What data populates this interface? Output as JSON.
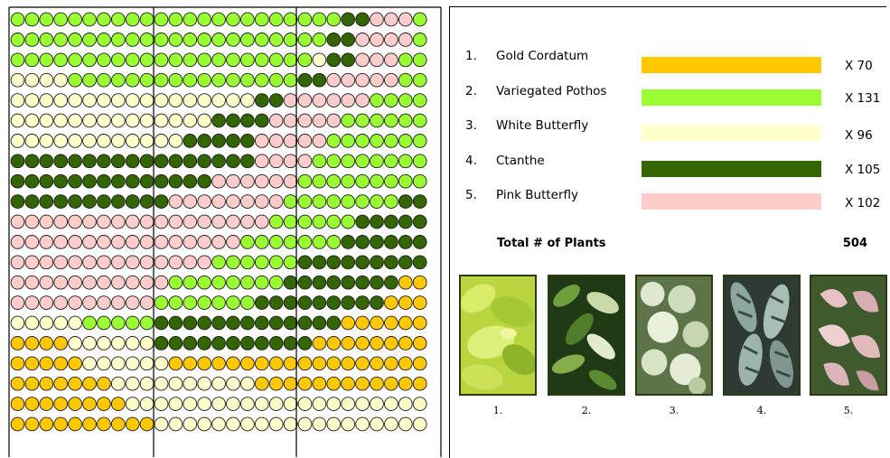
{
  "legend": {
    "items": [
      {
        "number": "1.",
        "name": "Gold Cordatum",
        "count": "X  70",
        "color": "#FFC800"
      },
      {
        "number": "2.",
        "name": "Variegated Pothos",
        "count": "X 131",
        "color": "#99FF33"
      },
      {
        "number": "3.",
        "name": "White Butterfly",
        "count": "X  96",
        "color": "#FFFFCC"
      },
      {
        "number": "4.",
        "name": "Ctanthe",
        "count": "X 105",
        "color": "#336600"
      },
      {
        "number": "5.",
        "name": "Pink Butterfly",
        "count": "X 102",
        "color": "#FFCCCC"
      }
    ],
    "total_label": "Total # of Plants",
    "total_value": "504"
  },
  "photos": [
    {
      "caption": "1.",
      "subject": "gold-cordatum-photo"
    },
    {
      "caption": "2.",
      "subject": "variegated-pothos-photo"
    },
    {
      "caption": "3.",
      "subject": "white-butterfly-photo"
    },
    {
      "caption": "4.",
      "subject": "ctanthe-photo"
    },
    {
      "caption": "5.",
      "subject": "pink-butterfly-photo"
    }
  ],
  "planting_grid": {
    "key": {
      "Y": "Gold Cordatum",
      "G": "Variegated Pothos",
      "W": "White Butterfly",
      "D": "Ctanthe",
      "P": "Pink Butterfly"
    },
    "rows": [
      "GGGGGGGGGGGGGGGGGGGGGGGDDPPPG",
      "GGGGGGGGGGGGGGGGGGGGGGDDPPPPG",
      "GGGGGGGGGGGGGGGGGGGGGWDDPPPGG",
      "WWWWGGGGGGGGGGGGGGGGDDPPPPPGG",
      "WWWWWWWWWWWWWWWWWDDPPPPPPGGGG",
      "WWWWWWWWWWWWWWDDDDPPPPPGGGGGG",
      "WWWWWWWWWWWWDDDDDPPPPPGGGGGGG",
      "DDDDDDDDDDDDDDDDDPPPPGGGGGGGG",
      "DDDDDDDDDDDDDDPPPPPPGGGGGGGGG",
      "DDDDDDDDDDDPPPPPPPPGGGGGGGGDD",
      "PPPPPPPPPPPPPPPPPPGGGGGGDDDDD",
      "PPPPPPPPPPPPPPPPGGGGGGGDDDDDD",
      "PPPPPPPPPPPPPPGGGGGGDDDDDDDDD",
      "PPPPPPPPPPPGGGGGGGGDDDDDDDDYY",
      "PPPPPPPPPPGGGGGGGDDDDDDDDDYYY",
      "WWWWWGGGGGDDDDDDDDDDDDDYYYYYY",
      "YYYYWWWWWWDDDDDDDDDDDYYYYYYYY",
      "YYYYYWWWWWWYYYYYYYYYYYYYYYYYY",
      "YYYYYYYWWWWWWWWWWYYYYYYYYYYYY",
      "YYYYYYYYWWWWWWWWWWWWWWWWWWWWW",
      "YYYYYYYYYYWWWWWWWWWWWWWWWWWWW"
    ]
  }
}
